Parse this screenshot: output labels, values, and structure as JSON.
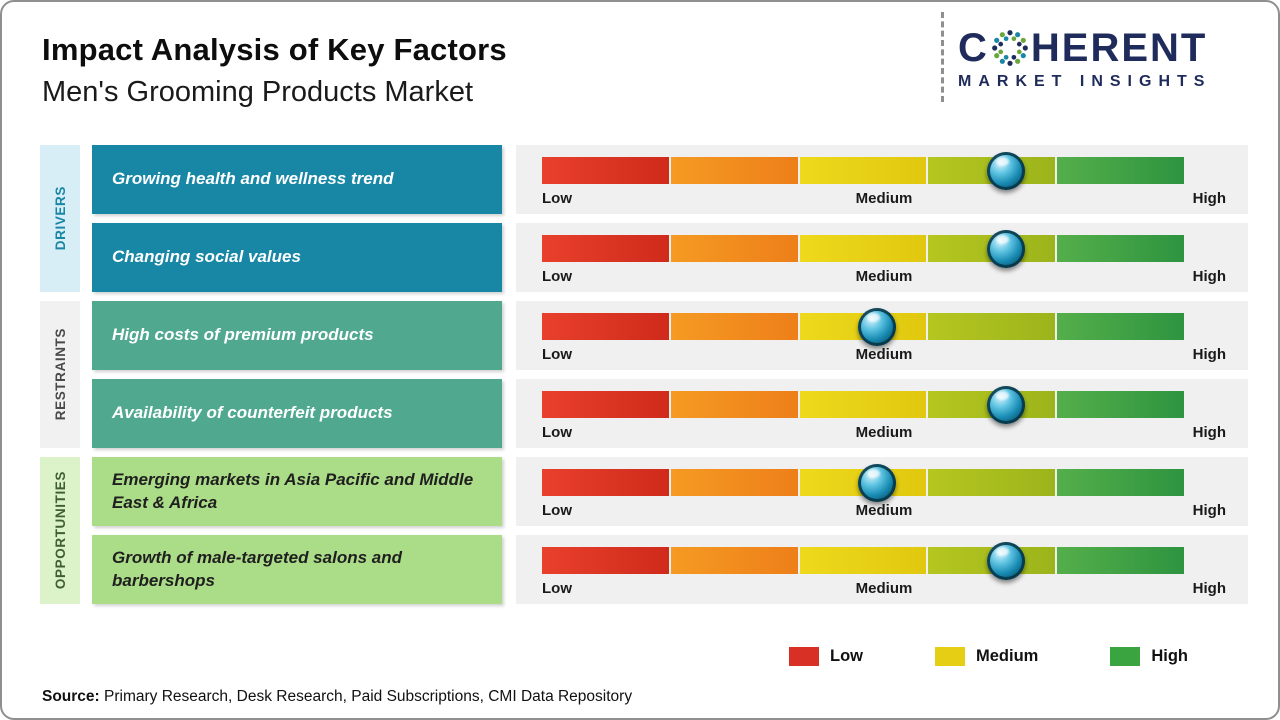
{
  "header": {
    "title": "Impact Analysis of Key Factors",
    "subtitle": "Men's Grooming Products Market"
  },
  "logo": {
    "name": "Coherent Market Insights",
    "line1_left": "C",
    "line1_right": "HERENT",
    "line2": "MARKET INSIGHTS",
    "brand_color": "#1f2b5b"
  },
  "chart_data": {
    "type": "impact-scale (bullet-style markers on Low–High gradient bars)",
    "title": "Impact Analysis of Key Factors",
    "subtitle": "Men's Grooming Products Market",
    "scale_labels": [
      "Low",
      "Medium",
      "High"
    ],
    "scale_colors": [
      "#e03a24",
      "#f2921f",
      "#e9d318",
      "#abc01d",
      "#3fa33c"
    ],
    "marker_color": "#1a8cb4",
    "groups": [
      {
        "category": "DRIVERS",
        "category_bg": "#d8eef6",
        "factor_bg": "#1886a5",
        "factors": [
          {
            "label": "Growing health and wellness trend",
            "impact_percent": 72,
            "impact_level": "Medium-High"
          },
          {
            "label": "Changing social values",
            "impact_percent": 72,
            "impact_level": "Medium-High"
          }
        ]
      },
      {
        "category": "RESTRAINTS",
        "category_bg": "#f1f1f1",
        "factor_bg": "#50a98e",
        "factors": [
          {
            "label": "High costs of premium products",
            "impact_percent": 52,
            "impact_level": "Medium"
          },
          {
            "label": "Availability of counterfeit products",
            "impact_percent": 72,
            "impact_level": "Medium-High"
          }
        ]
      },
      {
        "category": "OPPORTUNITIES",
        "category_bg": "#dcf3c9",
        "factor_bg": "#abdc88",
        "factors": [
          {
            "label": "Emerging markets in Asia Pacific and Middle East & Africa",
            "impact_percent": 52,
            "impact_level": "Medium"
          },
          {
            "label": "Growth of male-targeted salons and barbershops",
            "impact_percent": 72,
            "impact_level": "Medium-High"
          }
        ]
      }
    ],
    "legend_position": "bottom-right"
  },
  "legend": {
    "items": [
      {
        "label": "Low",
        "color": "#d93025"
      },
      {
        "label": "Medium",
        "color": "#e5ce14"
      },
      {
        "label": "High",
        "color": "#3aa440"
      }
    ]
  },
  "source": {
    "label": "Source:",
    "text": " Primary Research, Desk Research, Paid Subscriptions, CMI Data Repository"
  }
}
